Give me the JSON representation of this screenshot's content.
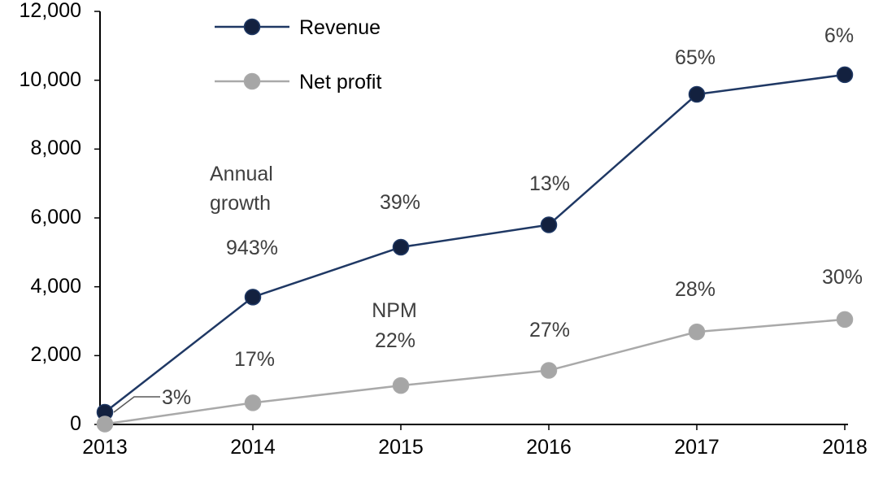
{
  "chart_data": {
    "type": "line",
    "title": "",
    "xlabel": "",
    "ylabel": "",
    "x": [
      "2013",
      "2014",
      "2015",
      "2016",
      "2017",
      "2018"
    ],
    "xtick_labels": [
      "2013",
      "2014",
      "2015",
      "2016",
      "2017",
      "2018"
    ],
    "ytick_labels": [
      "12,000",
      "10,000",
      "8,000",
      "6,000",
      "4,000",
      "2,000",
      "0"
    ],
    "yticks": [
      12000,
      10000,
      8000,
      6000,
      4000,
      2000,
      0
    ],
    "ylim": [
      0,
      12000
    ],
    "grid": false,
    "axis_color": "#000000",
    "label_color": "#3f3f3f",
    "series": [
      {
        "name": "Revenue",
        "color": "#1f3864",
        "marker_color": "#13213f",
        "values": [
          355,
          3700,
          5150,
          5800,
          9590,
          10160
        ],
        "growth_labels": [
          "",
          "943%",
          "39%",
          "13%",
          "65%",
          "6%"
        ]
      },
      {
        "name": "Net profit",
        "color": "#a9a9a9",
        "marker_color": "#a6a6a6",
        "values": [
          11,
          630,
          1130,
          1570,
          2690,
          3050
        ],
        "npm_labels": [
          "3%",
          "17%",
          "22%",
          "27%",
          "28%",
          "30%"
        ]
      }
    ],
    "annotations": {
      "growth_title": "Annual growth",
      "npm_title": "NPM"
    },
    "legend_position": "top-left"
  },
  "legend": {
    "items": [
      {
        "label": "Revenue",
        "line_color": "#1f3864",
        "marker_color": "#13213f"
      },
      {
        "label": "Net profit",
        "line_color": "#a9a9a9",
        "marker_color": "#a6a6a6"
      }
    ]
  }
}
